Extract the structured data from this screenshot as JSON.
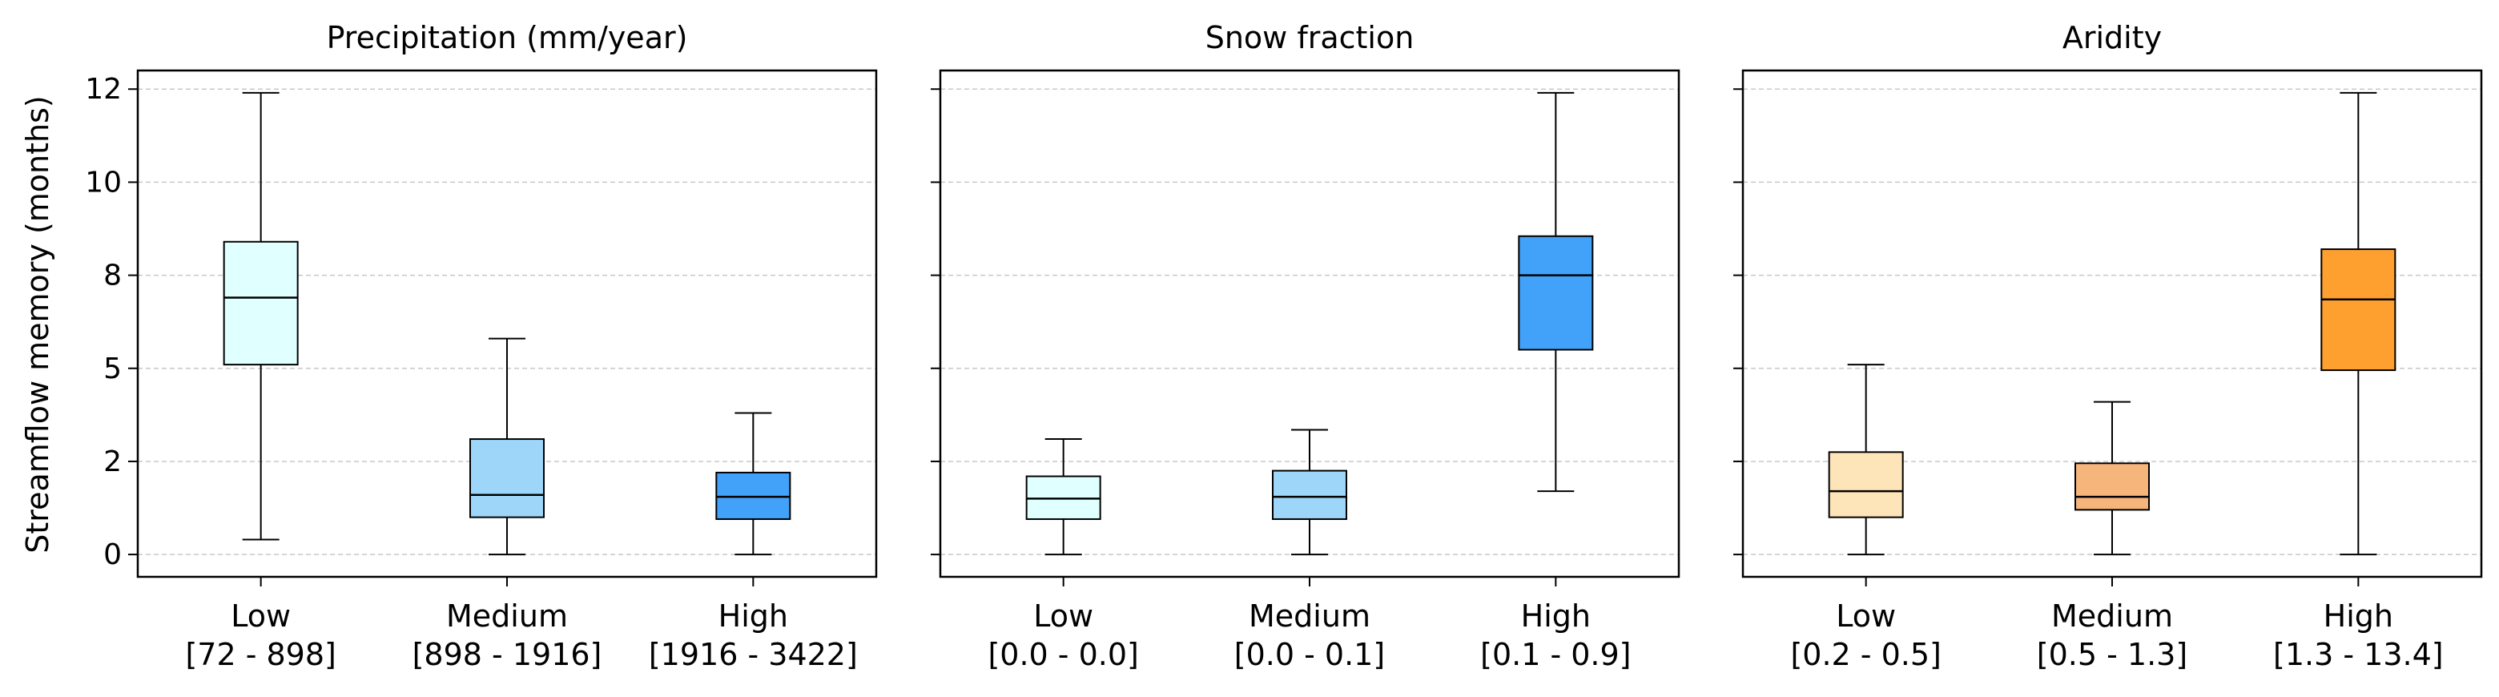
{
  "ylabel": "Streamflow memory (months)",
  "yticks": [
    0,
    2.5,
    5,
    7.5,
    10,
    12.5
  ],
  "ytick_labels": [
    "0",
    "2",
    "5",
    "8",
    "10",
    "12"
  ],
  "ylim": [
    -0.6,
    13.0
  ],
  "grid": "horizontal dashed",
  "chart_data": [
    {
      "type": "box",
      "title": "Precipitation (mm/year)",
      "categories": [
        {
          "label": "Low",
          "range": "[72 - 898]",
          "color": "#e0ffff",
          "whisker_low": 0.4,
          "q1": 5.1,
          "median": 6.9,
          "q3": 8.4,
          "whisker_high": 12.4
        },
        {
          "label": "Medium",
          "range": "[898 - 1916]",
          "color": "#9ed6fa",
          "whisker_low": 0.0,
          "q1": 1.0,
          "median": 1.6,
          "q3": 3.1,
          "whisker_high": 5.8
        },
        {
          "label": "High",
          "range": "[1916 - 3422]",
          "color": "#42a1f8",
          "whisker_low": 0.0,
          "q1": 0.95,
          "median": 1.55,
          "q3": 2.2,
          "whisker_high": 3.8
        }
      ]
    },
    {
      "type": "box",
      "title": "Snow fraction",
      "categories": [
        {
          "label": "Low",
          "range": "[0.0 - 0.0]",
          "color": "#e0ffff",
          "whisker_low": 0.0,
          "q1": 0.95,
          "median": 1.5,
          "q3": 2.1,
          "whisker_high": 3.1
        },
        {
          "label": "Medium",
          "range": "[0.0 - 0.1]",
          "color": "#9ed6fa",
          "whisker_low": 0.0,
          "q1": 0.95,
          "median": 1.55,
          "q3": 2.25,
          "whisker_high": 3.35
        },
        {
          "label": "High",
          "range": "[0.1 - 0.9]",
          "color": "#42a1f8",
          "whisker_low": 1.7,
          "q1": 5.5,
          "median": 7.5,
          "q3": 8.55,
          "whisker_high": 12.4
        }
      ]
    },
    {
      "type": "box",
      "title": "Aridity",
      "categories": [
        {
          "label": "Low",
          "range": "[0.2 - 0.5]",
          "color": "#fee5b9",
          "whisker_low": 0.0,
          "q1": 1.0,
          "median": 1.7,
          "q3": 2.75,
          "whisker_high": 5.1
        },
        {
          "label": "Medium",
          "range": "[0.5 - 1.3]",
          "color": "#f6b57a",
          "whisker_low": 0.0,
          "q1": 1.2,
          "median": 1.55,
          "q3": 2.45,
          "whisker_high": 4.1
        },
        {
          "label": "High",
          "range": "[1.3 - 13.4]",
          "color": "#fea02f",
          "whisker_low": 0.0,
          "q1": 4.95,
          "median": 6.85,
          "q3": 8.2,
          "whisker_high": 12.4
        }
      ]
    }
  ]
}
